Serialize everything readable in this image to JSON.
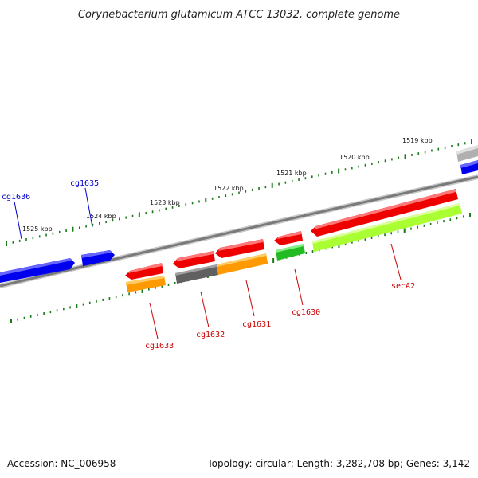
{
  "title": "Corynebacterium glutamicum ATCC 13032, complete genome",
  "footer": {
    "accession": "Accession: NC_006958",
    "summary": "Topology: circular; Length: 3,282,708 bp; Genes: 3,142"
  },
  "colors": {
    "backbone": "#7a7a7a",
    "tick": "#1a7a1a",
    "label_forward": "#0000cc",
    "label_reverse": "#cc0000",
    "blue": "#0000ee",
    "red": "#ee0000",
    "orange": "#ff9900",
    "dark_gray": "#606060",
    "green": "#22bb22",
    "light_green": "#aaff33",
    "light_gray": "#b0b0b0"
  },
  "ticks": [
    {
      "label": "1519 kbp"
    },
    {
      "label": "1520 kbp"
    },
    {
      "label": "1521 kbp"
    },
    {
      "label": "1522 kbp"
    },
    {
      "label": "1523 kbp"
    },
    {
      "label": "1524 kbp"
    },
    {
      "label": "1525 kbp"
    }
  ],
  "genes": [
    {
      "name": "cg1636",
      "strand": "forward",
      "color": "blue"
    },
    {
      "name": "cg1635",
      "strand": "forward",
      "color": "blue"
    },
    {
      "name": "cg1633",
      "strand": "reverse",
      "color": "red",
      "feature_color": "orange"
    },
    {
      "name": "cg1632",
      "strand": "reverse",
      "color": "red",
      "feature_color": "dark_gray"
    },
    {
      "name": "cg1631",
      "strand": "reverse",
      "color": "red",
      "feature_color": "orange"
    },
    {
      "name": "cg1630",
      "strand": "reverse",
      "color": "red",
      "feature_color": "green"
    },
    {
      "name": "secA2",
      "strand": "reverse",
      "color": "red",
      "feature_color": "light_green"
    },
    {
      "name": "",
      "strand": "forward",
      "color": "light_gray"
    },
    {
      "name": "",
      "strand": "forward",
      "color": "blue"
    }
  ]
}
